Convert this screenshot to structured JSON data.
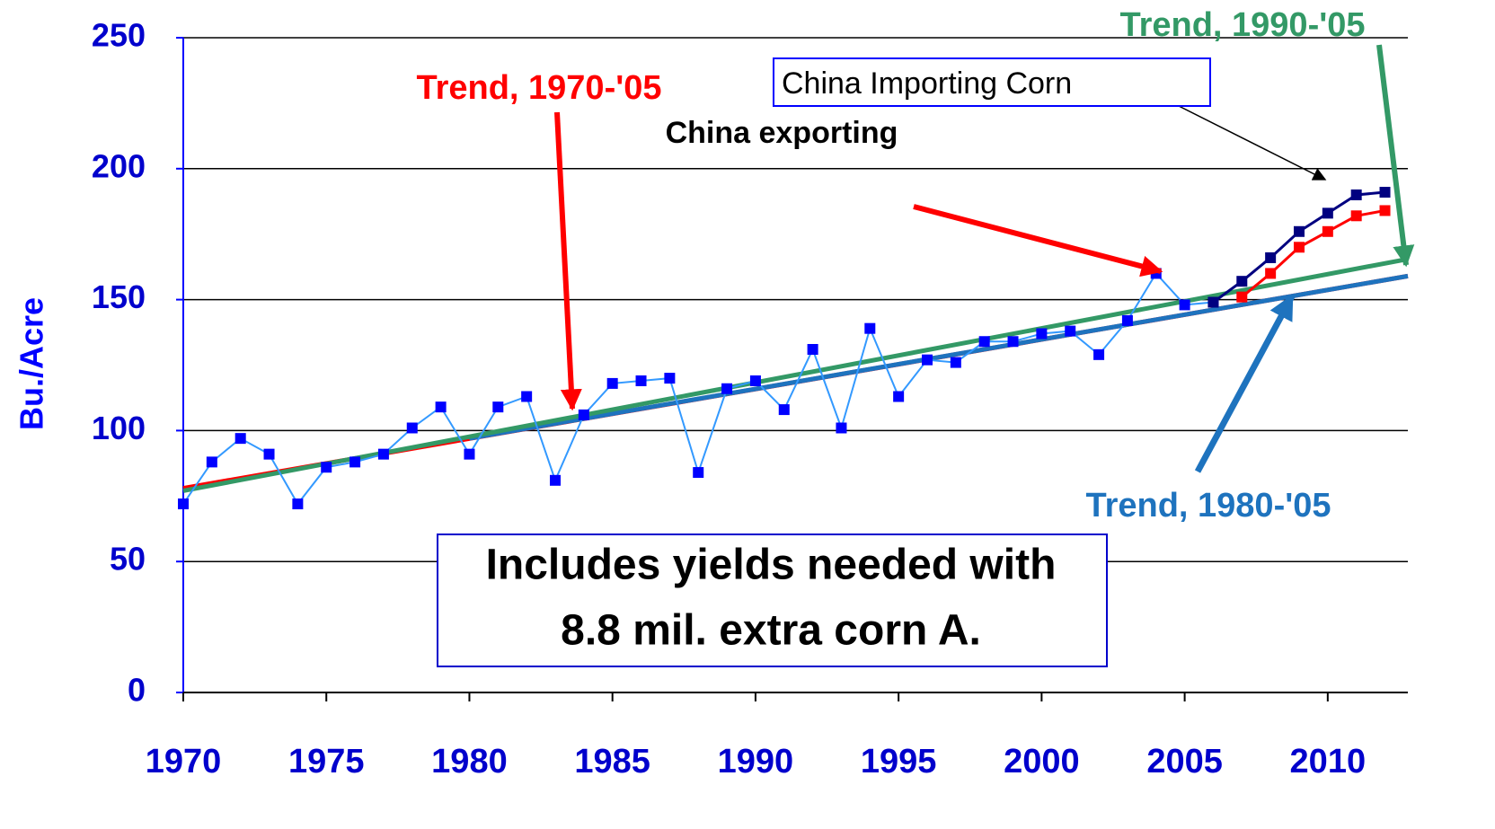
{
  "chart_data": {
    "type": "line",
    "ylabel": "Bu./Acre",
    "xlim": [
      1970,
      2012.8
    ],
    "ylim": [
      0,
      250
    ],
    "xticks": [
      1970,
      1975,
      1980,
      1985,
      1990,
      1995,
      2000,
      2005,
      2010
    ],
    "yticks": [
      0,
      50,
      100,
      150,
      200,
      250
    ],
    "grid": true,
    "series": [
      {
        "color": "#3399ff",
        "marker_color": "#0000ff",
        "markers": true,
        "x": [
          1970,
          1971,
          1972,
          1973,
          1974,
          1975,
          1976,
          1977,
          1978,
          1979,
          1980,
          1981,
          1982,
          1983,
          1984,
          1985,
          1986,
          1987,
          1988,
          1989,
          1990,
          1991,
          1992,
          1993,
          1994,
          1995,
          1996,
          1997,
          1998,
          1999,
          2000,
          2001,
          2002,
          2003,
          2004,
          2005,
          2006
        ],
        "values": [
          72,
          88,
          97,
          91,
          72,
          86,
          88,
          91,
          101,
          109,
          91,
          109,
          113,
          81,
          106,
          118,
          119,
          120,
          84,
          116,
          119,
          108,
          131,
          101,
          139,
          113,
          127,
          126,
          134,
          134,
          137,
          138,
          129,
          142,
          160,
          148,
          149
        ]
      },
      {
        "color": "#000080",
        "marker_color": "#000080",
        "markers": true,
        "x": [
          2006,
          2007,
          2008,
          2009,
          2010,
          2011,
          2012
        ],
        "values": [
          149,
          157,
          166,
          176,
          183,
          190,
          191
        ]
      },
      {
        "color": "#ff0000",
        "marker_color": "#ff0000",
        "markers": true,
        "x": [
          2007,
          2008,
          2009,
          2010,
          2011,
          2012
        ],
        "values": [
          151,
          160,
          170,
          176,
          182,
          184
        ]
      },
      {
        "color": "#ff0000",
        "markers": false,
        "x": [
          1970,
          2012.8
        ],
        "values": [
          78,
          159
        ]
      },
      {
        "color": "#1e73be",
        "markers": false,
        "x": [
          1980,
          2012.8
        ],
        "values": [
          97,
          159
        ]
      },
      {
        "color": "#339966",
        "markers": false,
        "x": [
          1970,
          2012.8
        ],
        "values": [
          77,
          165.5
        ]
      }
    ],
    "annotations": [
      "Trend, 1970-'05",
      "China exporting",
      "China Importing Corn",
      "Trend, 1990-'05",
      "Trend, 1980-'05",
      "Includes yields needed with",
      "8.8 mil. extra corn A."
    ]
  }
}
